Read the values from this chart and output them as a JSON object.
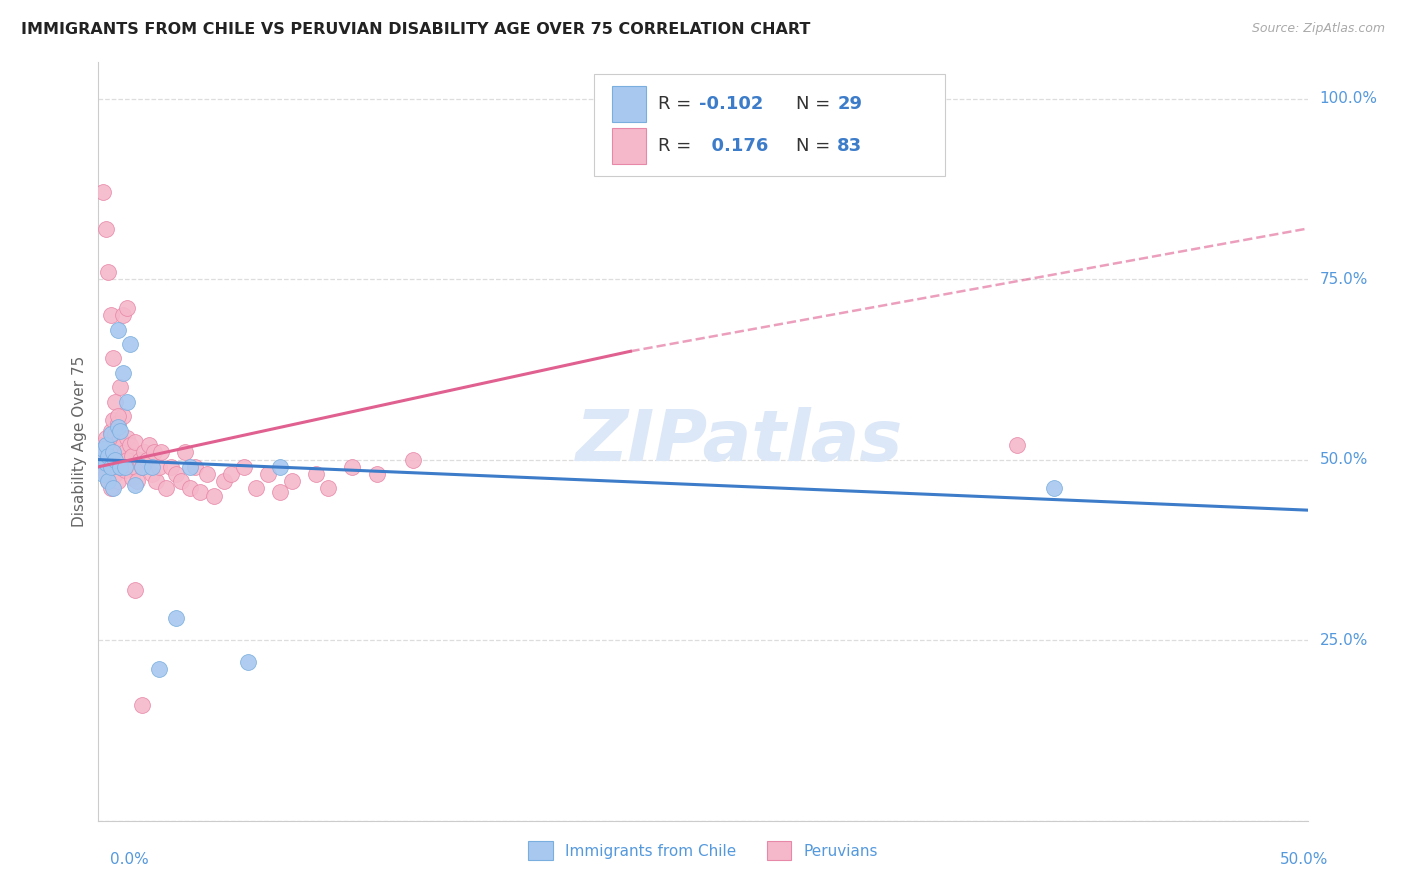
{
  "title": "IMMIGRANTS FROM CHILE VS PERUVIAN DISABILITY AGE OVER 75 CORRELATION CHART",
  "source": "Source: ZipAtlas.com",
  "ylabel": "Disability Age Over 75",
  "legend_label1": "Immigrants from Chile",
  "legend_label2": "Peruvians",
  "R1": "-0.102",
  "N1": "29",
  "R2": "0.176",
  "N2": "83",
  "blue_color": "#a8c8f0",
  "pink_color": "#f5b8cb",
  "blue_scatter_edge": "#7aaede",
  "pink_scatter_edge": "#e888a8",
  "blue_line_color": "#3d7cc9",
  "pink_line_color": "#e06090",
  "title_color": "#222222",
  "source_color": "#aaaaaa",
  "axis_label_color": "#5599dd",
  "legend_r_color": "#333333",
  "background_color": "#ffffff",
  "grid_color": "#dddddd",
  "xlim": [
    0.0,
    0.5
  ],
  "ylim": [
    0.0,
    1.05
  ],
  "watermark_color": "#dce8f8",
  "chile_x": [
    0.001,
    0.002,
    0.002,
    0.003,
    0.003,
    0.004,
    0.004,
    0.005,
    0.005,
    0.006,
    0.006,
    0.007,
    0.008,
    0.008,
    0.009,
    0.009,
    0.01,
    0.011,
    0.012,
    0.013,
    0.015,
    0.018,
    0.022,
    0.025,
    0.032,
    0.038,
    0.062,
    0.075,
    0.395
  ],
  "chile_y": [
    0.5,
    0.515,
    0.48,
    0.495,
    0.52,
    0.505,
    0.47,
    0.49,
    0.535,
    0.51,
    0.46,
    0.5,
    0.545,
    0.68,
    0.49,
    0.54,
    0.62,
    0.49,
    0.58,
    0.66,
    0.465,
    0.49,
    0.49,
    0.21,
    0.28,
    0.49,
    0.22,
    0.49,
    0.46
  ],
  "peru_x": [
    0.001,
    0.001,
    0.002,
    0.002,
    0.003,
    0.003,
    0.003,
    0.004,
    0.004,
    0.004,
    0.005,
    0.005,
    0.005,
    0.006,
    0.006,
    0.006,
    0.007,
    0.007,
    0.007,
    0.008,
    0.008,
    0.008,
    0.009,
    0.009,
    0.01,
    0.01,
    0.01,
    0.011,
    0.011,
    0.012,
    0.012,
    0.013,
    0.013,
    0.014,
    0.014,
    0.015,
    0.015,
    0.016,
    0.017,
    0.018,
    0.019,
    0.02,
    0.021,
    0.022,
    0.023,
    0.024,
    0.025,
    0.026,
    0.028,
    0.03,
    0.032,
    0.034,
    0.036,
    0.038,
    0.04,
    0.042,
    0.045,
    0.048,
    0.052,
    0.055,
    0.06,
    0.065,
    0.07,
    0.075,
    0.08,
    0.09,
    0.095,
    0.105,
    0.115,
    0.13,
    0.002,
    0.003,
    0.004,
    0.005,
    0.006,
    0.007,
    0.008,
    0.009,
    0.01,
    0.012,
    0.015,
    0.018,
    0.38
  ],
  "peru_y": [
    0.5,
    0.52,
    0.49,
    0.51,
    0.48,
    0.5,
    0.53,
    0.47,
    0.495,
    0.515,
    0.46,
    0.505,
    0.54,
    0.49,
    0.52,
    0.555,
    0.48,
    0.5,
    0.535,
    0.47,
    0.51,
    0.55,
    0.49,
    0.53,
    0.5,
    0.52,
    0.56,
    0.485,
    0.51,
    0.5,
    0.53,
    0.49,
    0.52,
    0.475,
    0.505,
    0.49,
    0.525,
    0.47,
    0.5,
    0.49,
    0.51,
    0.5,
    0.52,
    0.48,
    0.51,
    0.47,
    0.49,
    0.51,
    0.46,
    0.49,
    0.48,
    0.47,
    0.51,
    0.46,
    0.49,
    0.455,
    0.48,
    0.45,
    0.47,
    0.48,
    0.49,
    0.46,
    0.48,
    0.455,
    0.47,
    0.48,
    0.46,
    0.49,
    0.48,
    0.5,
    0.87,
    0.82,
    0.76,
    0.7,
    0.64,
    0.58,
    0.56,
    0.6,
    0.7,
    0.71,
    0.32,
    0.16,
    0.52
  ],
  "blue_line": [
    0.0,
    0.5,
    0.5,
    0.43
  ],
  "pink_line_solid": [
    0.0,
    0.22,
    0.49,
    0.65
  ],
  "pink_line_dash": [
    0.22,
    0.5,
    0.65,
    0.82
  ]
}
